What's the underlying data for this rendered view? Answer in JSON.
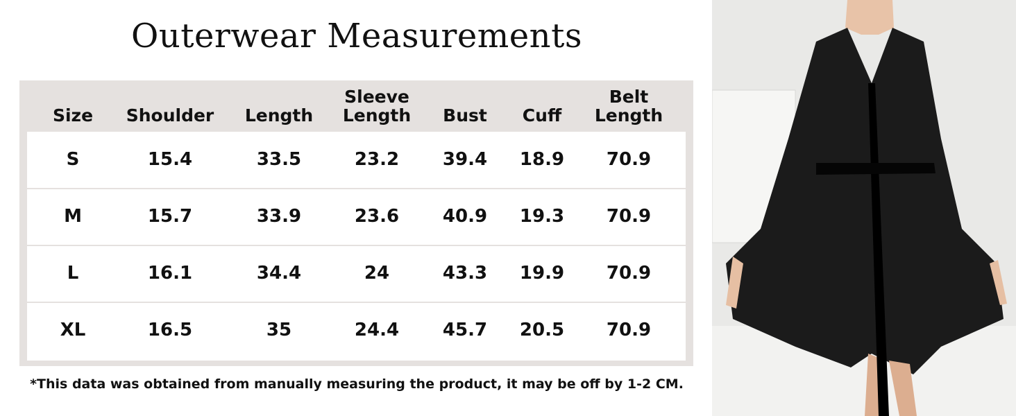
{
  "header": {
    "title": "Outerwear Measurements"
  },
  "table": {
    "columns": [
      "Size",
      "Shoulder",
      "Length",
      "Sleeve Length",
      "Bust",
      "Cuff",
      "Belt Length"
    ],
    "rows": [
      [
        "S",
        "15.4",
        "33.5",
        "23.2",
        "39.4",
        "18.9",
        "70.9"
      ],
      [
        "M",
        "15.7",
        "33.9",
        "23.6",
        "40.9",
        "19.3",
        "70.9"
      ],
      [
        "L",
        "16.1",
        "34.4",
        "24",
        "43.3",
        "19.9",
        "70.9"
      ],
      [
        "XL",
        "16.5",
        "35",
        "24.4",
        "45.7",
        "20.5",
        "70.9"
      ]
    ]
  },
  "footnote": "*This data was obtained from manually measuring the product, it may be off by 1-2 CM."
}
